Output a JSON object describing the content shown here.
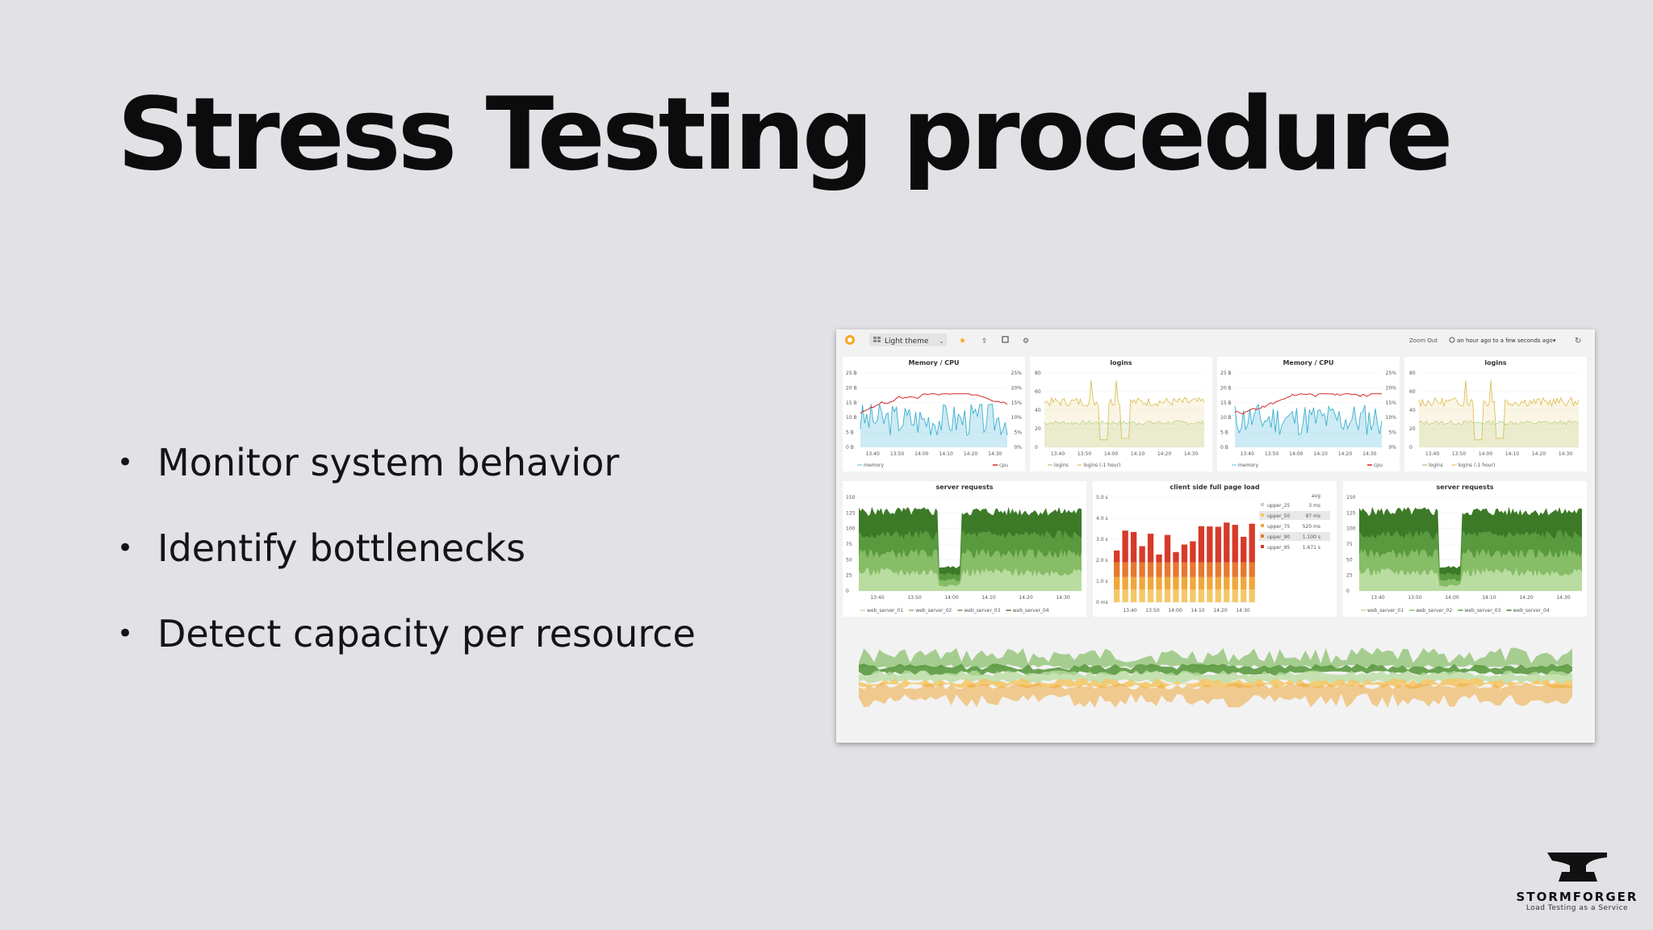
{
  "slide": {
    "title": "Stress Testing procedure",
    "bullets": [
      "Monitor system behavior",
      "Identify bottlenecks",
      "Detect capacity per resource"
    ],
    "bullet_glyph": "•"
  },
  "dashboard": {
    "theme_label": "Light theme",
    "zoom_label": "Zoom Out",
    "time_range": "an hour ago to a few seconds ago",
    "icons": [
      "grafana-logo-icon",
      "grid-icon",
      "star-icon",
      "share-icon",
      "save-icon",
      "gear-icon",
      "clock-icon",
      "refresh-icon"
    ],
    "x_ticks": [
      "13:40",
      "13:50",
      "14:00",
      "14:10",
      "14:20",
      "14:30"
    ],
    "panels": {
      "mem_cpu": {
        "title": "Memory / CPU",
        "y_left": [
          "25 B",
          "20 B",
          "15 B",
          "10 B",
          "5 B",
          "0 B"
        ],
        "y_right": [
          "25%",
          "20%",
          "15%",
          "10%",
          "5%",
          "0%"
        ],
        "legend": [
          "memory",
          "cpu"
        ]
      },
      "logins": {
        "title": "logins",
        "y": [
          "80",
          "60",
          "40",
          "20",
          "0"
        ],
        "legend": [
          "logins",
          "logins (-1 hour)"
        ]
      },
      "server_requests": {
        "title": "server requests",
        "y": [
          "150",
          "125",
          "100",
          "75",
          "50",
          "25",
          "0"
        ],
        "legend": [
          "web_server_01",
          "web_server_02",
          "web_server_03",
          "web_server_04"
        ]
      },
      "client_load": {
        "title": "client side full page load",
        "y": [
          "5.0 s",
          "4.0 s",
          "3.0 s",
          "2.0 s",
          "1.0 s",
          "0 ms"
        ],
        "legend_header": "avg",
        "legend": [
          {
            "name": "upper_25",
            "value": "3 ms"
          },
          {
            "name": "upper_50",
            "value": "97 ms"
          },
          {
            "name": "upper_75",
            "value": "520 ms"
          },
          {
            "name": "upper_90",
            "value": "1.100 s"
          },
          {
            "name": "upper_95",
            "value": "1.671 s"
          }
        ]
      }
    },
    "colors": {
      "memory": "#8fd3e6",
      "cpu": "#d62728",
      "logins": "#e8cf7a",
      "logins_prev": "#b7d28f",
      "g1": "#3c7a28",
      "g2": "#5a9a3f",
      "g3": "#86bd66",
      "g4": "#b9dca0",
      "r1": "#d73a2a",
      "r2": "#e7782f",
      "r3": "#efa83c",
      "r4": "#f4c86a"
    }
  },
  "brand": {
    "name": "STORMFORGER",
    "tagline": "Load Testing as a Service"
  }
}
